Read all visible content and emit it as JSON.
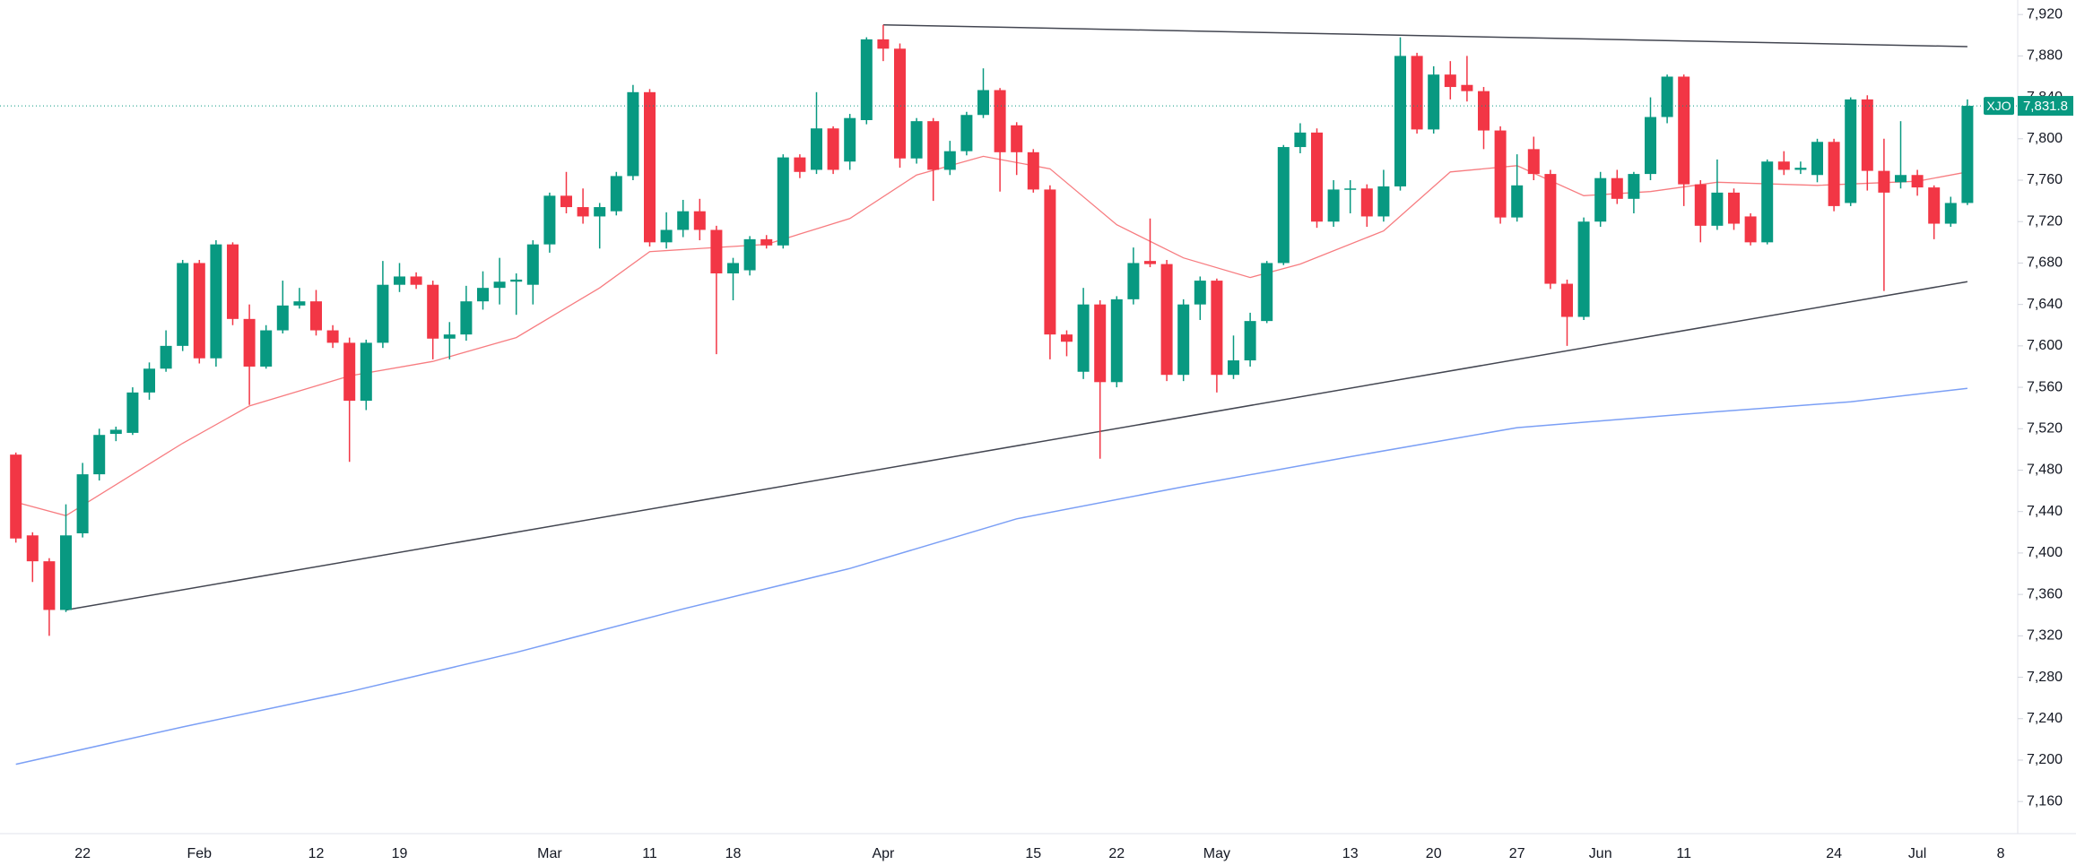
{
  "chart_data": {
    "type": "candlestick",
    "categories": [
      null,
      null,
      null,
      null,
      "22",
      null,
      null,
      null,
      null,
      null,
      null,
      "Feb",
      null,
      null,
      null,
      null,
      null,
      null,
      "12",
      null,
      null,
      null,
      null,
      "19",
      null,
      null,
      null,
      null,
      null,
      null,
      null,
      null,
      "Mar",
      null,
      null,
      null,
      null,
      null,
      "11",
      null,
      null,
      null,
      null,
      "18",
      null,
      null,
      null,
      null,
      null,
      null,
      null,
      null,
      "Apr",
      null,
      null,
      null,
      null,
      null,
      null,
      null,
      null,
      "15",
      null,
      null,
      null,
      null,
      "22",
      null,
      null,
      null,
      null,
      null,
      "May",
      null,
      null,
      null,
      null,
      null,
      null,
      null,
      "13",
      null,
      null,
      null,
      null,
      "20",
      null,
      null,
      null,
      null,
      "27",
      null,
      null,
      null,
      null,
      "Jun",
      null,
      null,
      null,
      null,
      "11",
      null,
      null,
      null,
      null,
      null,
      null,
      null,
      null,
      "24",
      null,
      null,
      null,
      null,
      "Jul",
      null,
      null,
      null,
      null,
      "8"
    ],
    "open": [
      7495,
      7417,
      7392,
      7345,
      7419,
      7476,
      7515,
      7516,
      7555,
      7578,
      7600,
      7680,
      7588,
      7698,
      7626,
      7580,
      7615,
      7639,
      7643,
      7615,
      7603,
      7547,
      7603,
      7659,
      7667,
      7659,
      7607,
      7611,
      7643,
      7656,
      7662,
      7659,
      7698,
      7745,
      7734,
      7725,
      7730,
      7764,
      7845,
      7700,
      7712,
      7730,
      7712,
      7670,
      7673,
      7703,
      7697,
      7782,
      7770,
      7810,
      7778,
      7818,
      7896,
      7887,
      7781,
      7817,
      7770,
      7788,
      7823,
      7847,
      7813,
      7787,
      7751,
      7611,
      7575,
      7640,
      7565,
      7645,
      7682,
      7679,
      7572,
      7640,
      7663,
      7572,
      7586,
      7624,
      7680,
      7792,
      7806,
      7720,
      7751,
      7752,
      7725,
      7754,
      7880,
      7809,
      7862,
      7852,
      7846,
      7808,
      7724,
      7790,
      7766,
      7660,
      7628,
      7720,
      7762,
      7742,
      7766,
      7821,
      7860,
      7756,
      7716,
      7748,
      7725,
      7700,
      7778,
      7770,
      7765,
      7797,
      7738,
      7838,
      7769,
      7758,
      7765,
      7753,
      7718,
      7738,
      null,
      null
    ],
    "high": [
      7497,
      7420,
      7395,
      7447,
      7487,
      7520,
      7522,
      7560,
      7584,
      7615,
      7683,
      7683,
      7702,
      7700,
      7640,
      7620,
      7663,
      7656,
      7654,
      7620,
      7608,
      7606,
      7682,
      7680,
      7671,
      7663,
      7623,
      7658,
      7672,
      7685,
      7670,
      7702,
      7748,
      7768,
      7752,
      7738,
      7768,
      7852,
      7848,
      7729,
      7741,
      7742,
      7716,
      7685,
      7706,
      7707,
      7785,
      7785,
      7845,
      7812,
      7824,
      7898,
      7910,
      7892,
      7820,
      7820,
      7798,
      7826,
      7868,
      7849,
      7816,
      7790,
      7755,
      7615,
      7656,
      7644,
      7648,
      7695,
      7723,
      7683,
      7645,
      7667,
      7665,
      7610,
      7632,
      7682,
      7794,
      7815,
      7810,
      7760,
      7760,
      7756,
      7770,
      7898,
      7883,
      7870,
      7875,
      7880,
      7850,
      7812,
      7785,
      7802,
      7770,
      7664,
      7724,
      7768,
      7770,
      7768,
      7840,
      7862,
      7862,
      7760,
      7780,
      7752,
      7728,
      7780,
      7788,
      7778,
      7800,
      7800,
      7840,
      7842,
      7800,
      7817,
      7770,
      7755,
      7744,
      7838,
      null,
      null
    ],
    "low": [
      7410,
      7372,
      7320,
      7343,
      7415,
      7470,
      7508,
      7514,
      7548,
      7575,
      7595,
      7583,
      7580,
      7620,
      7543,
      7578,
      7612,
      7636,
      7610,
      7598,
      7488,
      7538,
      7598,
      7652,
      7655,
      7587,
      7587,
      7605,
      7635,
      7640,
      7630,
      7640,
      7690,
      7728,
      7718,
      7694,
      7726,
      7760,
      7696,
      7694,
      7705,
      7702,
      7592,
      7644,
      7668,
      7694,
      7694,
      7762,
      7766,
      7766,
      7770,
      7814,
      7875,
      7772,
      7776,
      7740,
      7765,
      7784,
      7820,
      7749,
      7765,
      7748,
      7587,
      7590,
      7568,
      7491,
      7560,
      7640,
      7676,
      7566,
      7566,
      7625,
      7555,
      7568,
      7580,
      7622,
      7678,
      7786,
      7714,
      7715,
      7728,
      7715,
      7720,
      7750,
      7805,
      7805,
      7838,
      7836,
      7790,
      7718,
      7720,
      7760,
      7655,
      7600,
      7625,
      7715,
      7737,
      7728,
      7760,
      7815,
      7735,
      7700,
      7712,
      7712,
      7697,
      7698,
      7765,
      7766,
      7758,
      7730,
      7735,
      7750,
      7653,
      7752,
      7745,
      7703,
      7715,
      7736,
      null,
      null
    ],
    "close": [
      7414,
      7392,
      7345,
      7417,
      7476,
      7514,
      7519,
      7555,
      7578,
      7600,
      7680,
      7588,
      7698,
      7626,
      7580,
      7615,
      7639,
      7643,
      7615,
      7603,
      7547,
      7603,
      7659,
      7667,
      7659,
      7607,
      7611,
      7643,
      7656,
      7662,
      7664,
      7698,
      7745,
      7734,
      7725,
      7734,
      7764,
      7845,
      7700,
      7712,
      7730,
      7712,
      7670,
      7680,
      7703,
      7697,
      7782,
      7768,
      7810,
      7770,
      7820,
      7896,
      7887,
      7781,
      7817,
      7770,
      7788,
      7823,
      7847,
      7787,
      7787,
      7751,
      7611,
      7604,
      7640,
      7565,
      7645,
      7680,
      7679,
      7572,
      7640,
      7663,
      7572,
      7586,
      7624,
      7680,
      7792,
      7806,
      7720,
      7751,
      7752,
      7725,
      7754,
      7880,
      7809,
      7862,
      7850,
      7846,
      7808,
      7724,
      7755,
      7766,
      7660,
      7628,
      7720,
      7762,
      7742,
      7766,
      7821,
      7860,
      7756,
      7716,
      7748,
      7718,
      7700,
      7778,
      7770,
      7772,
      7797,
      7735,
      7838,
      7769,
      7748,
      7765,
      7753,
      7718,
      7738,
      7831.8,
      null,
      null
    ],
    "up_color": "#089981",
    "down_color": "#f23645",
    "overlays": [
      {
        "x": [
          0,
          3,
          10,
          14,
          20,
          25,
          30,
          35,
          38,
          45,
          50,
          54,
          58,
          62,
          66,
          70,
          74,
          77,
          82,
          86,
          90,
          94,
          98,
          102,
          108,
          114,
          117
        ],
        "values": [
          7449,
          7436,
          7506,
          7542,
          7571,
          7585,
          7608,
          7656,
          7691,
          7698,
          7723,
          7765,
          7783,
          7771,
          7717,
          7685,
          7666,
          7679,
          7711,
          7768,
          7774,
          7745,
          7749,
          7758,
          7755,
          7759,
          7768
        ],
        "color": "#f77c80",
        "width": 1.3
      },
      {
        "x": [
          0,
          10,
          20,
          30,
          40,
          50,
          60,
          70,
          80,
          90,
          100,
          110,
          117
        ],
        "values": [
          7196,
          7232,
          7266,
          7304,
          7346,
          7385,
          7433,
          7464,
          7493,
          7521,
          7534,
          7546,
          7559
        ],
        "color": "#7b9ff5",
        "width": 1.5
      },
      {
        "x": [
          52,
          117
        ],
        "values": [
          7910,
          7889
        ],
        "color": "#434651",
        "width": 1.5
      },
      {
        "x": [
          3,
          117
        ],
        "values": [
          7345,
          7662
        ],
        "color": "#434651",
        "width": 1.5
      }
    ],
    "last_price": {
      "value": 7831.8,
      "label": "7,831.8"
    },
    "symbol": "XJO",
    "price_color": "#089981",
    "ylim": [
      7129,
      7934
    ],
    "yticks": [
      {
        "value": 7160,
        "label": "7,160"
      },
      {
        "value": 7200,
        "label": "7,200"
      },
      {
        "value": 7240,
        "label": "7,240"
      },
      {
        "value": 7280,
        "label": "7,280"
      },
      {
        "value": 7320,
        "label": "7,320"
      },
      {
        "value": 7360,
        "label": "7,360"
      },
      {
        "value": 7400,
        "label": "7,400"
      },
      {
        "value": 7440,
        "label": "7,440"
      },
      {
        "value": 7480,
        "label": "7,480"
      },
      {
        "value": 7520,
        "label": "7,520"
      },
      {
        "value": 7560,
        "label": "7,560"
      },
      {
        "value": 7600,
        "label": "7,600"
      },
      {
        "value": 7640,
        "label": "7,640"
      },
      {
        "value": 7680,
        "label": "7,680"
      },
      {
        "value": 7720,
        "label": "7,720"
      },
      {
        "value": 7760,
        "label": "7,760"
      },
      {
        "value": 7800,
        "label": "7,800"
      },
      {
        "value": 7840,
        "label": "7,840"
      },
      {
        "value": 7880,
        "label": "7,880"
      },
      {
        "value": 7920,
        "label": "7,920"
      }
    ]
  }
}
